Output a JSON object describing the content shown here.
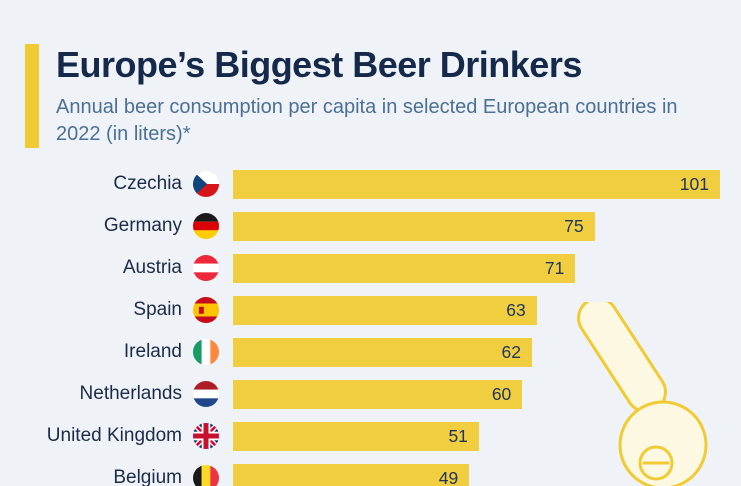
{
  "page": {
    "background_color": "#eff3f8",
    "accent_color": "#f0cb33"
  },
  "header": {
    "title": "Europe’s Biggest Beer Drinkers",
    "subtitle": "Annual beer consumption per capita in selected European countries in 2022 (in liters)*"
  },
  "chart_data": {
    "type": "bar",
    "orientation": "horizontal",
    "title": "Europe’s Biggest Beer Drinkers",
    "unit": "liters per capita per year",
    "year": "2022",
    "xlim": [
      0,
      101
    ],
    "bar_color": "#f0ce3f",
    "value_color": "#20355a",
    "grid": false,
    "legend": "none",
    "categories": [
      "Czechia",
      "Germany",
      "Austria",
      "Spain",
      "Ireland",
      "Netherlands",
      "United Kingdom",
      "Belgium"
    ],
    "values": [
      101,
      75,
      71,
      63,
      62,
      60,
      51,
      49
    ],
    "flags": [
      "czechia",
      "germany",
      "austria",
      "spain",
      "ireland",
      "netherlands",
      "united-kingdom",
      "belgium"
    ]
  },
  "decoration": {
    "name": "beer-tap-illustration",
    "outline_color": "#f0cb33",
    "fill_color": "#fdf8e1"
  }
}
